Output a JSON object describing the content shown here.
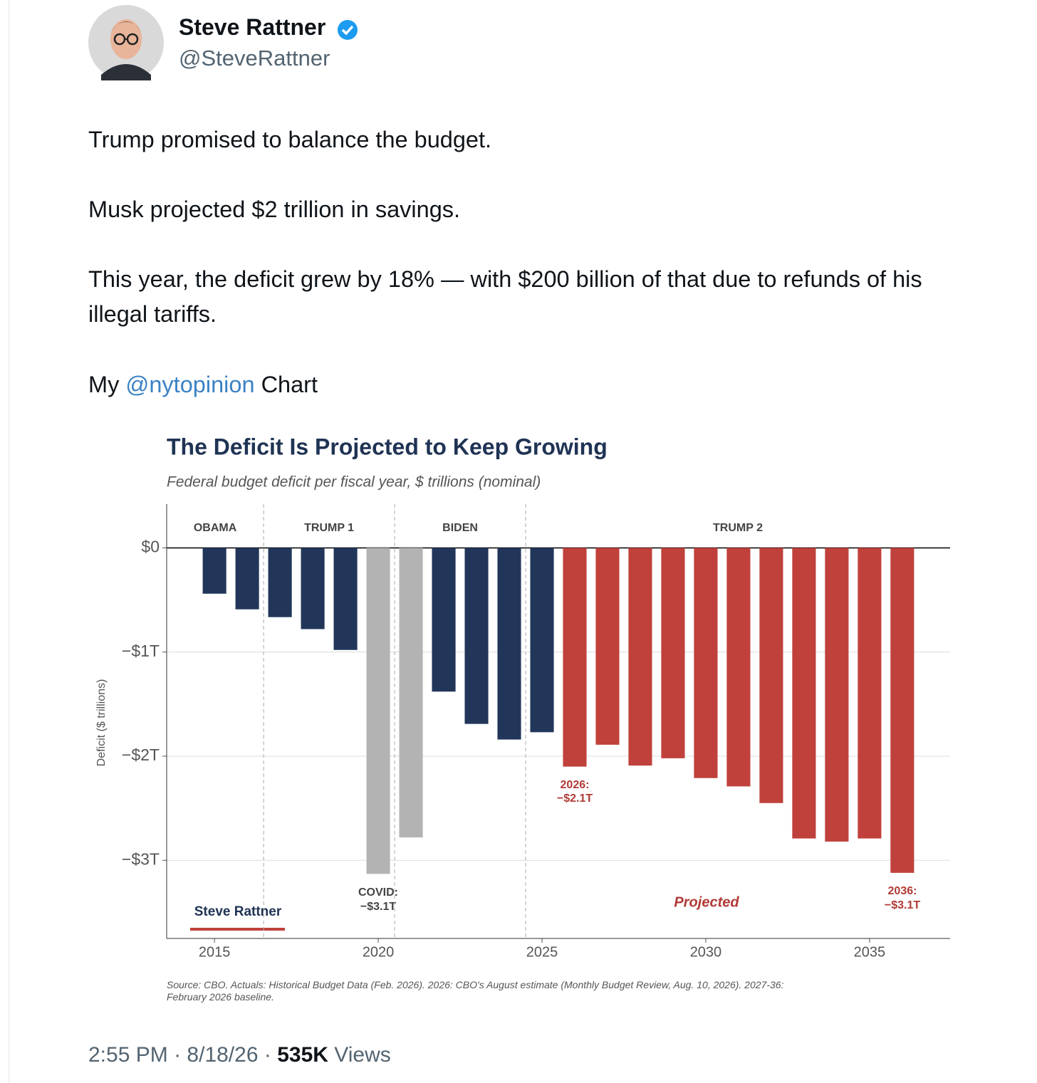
{
  "tweet": {
    "author_name": "Steve Rattner",
    "handle": "@SteveRattner",
    "paragraphs": [
      "Trump promised to balance the budget.",
      "Musk projected $2 trillion in savings.",
      "This year, the deficit grew by 18% — with $200 billion of that due to refunds of his illegal tariffs."
    ],
    "last_paragraph": {
      "before": "My",
      "mention": "@nytopinion",
      "after": "Chart"
    },
    "footer": {
      "time": "2:55 PM",
      "separator": "·",
      "date": "8/18/26",
      "views": "535K",
      "views_label": "Views"
    }
  },
  "chart_data": {
    "type": "bar",
    "title": "The Deficit Is Projected to Keep Growing",
    "subtitle": "Federal budget deficit per fiscal year, $ trillions (nominal)",
    "y_label": "Deficit ($ trillions)",
    "x": [
      2015,
      2016,
      2017,
      2018,
      2019,
      2020,
      2021,
      2022,
      2023,
      2024,
      2025,
      2026,
      2027,
      2028,
      2029,
      2030,
      2031,
      2032,
      2033,
      2034,
      2035,
      2036
    ],
    "values": [
      -0.44,
      -0.59,
      -0.665,
      -0.78,
      -0.98,
      -3.13,
      -2.78,
      -1.38,
      -1.69,
      -1.84,
      -1.77,
      -2.1,
      -1.89,
      -2.09,
      -2.02,
      -2.21,
      -2.29,
      -2.45,
      -2.79,
      -2.82,
      -2.79,
      -3.12
    ],
    "colors": [
      "#22365a",
      "#22365a",
      "#22365a",
      "#22365a",
      "#22365a",
      "#b3b3b3",
      "#b3b3b3",
      "#22365a",
      "#22365a",
      "#22365a",
      "#22365a",
      "#c0413b",
      "#c0413b",
      "#c0413b",
      "#c0413b",
      "#c0413b",
      "#c0413b",
      "#c0413b",
      "#c0413b",
      "#c0413b",
      "#c0413b",
      "#c0413b"
    ],
    "xlim": [
      2013.54,
      2037.46
    ],
    "ylim": [
      -3.75,
      0.42
    ],
    "xticks": [
      2015,
      2020,
      2025,
      2030,
      2035
    ],
    "yticks": [
      {
        "value": 0,
        "label": "$0"
      },
      {
        "value": -1,
        "label": "−$1T"
      },
      {
        "value": -2,
        "label": "−$2T"
      },
      {
        "value": -3,
        "label": "−$3T"
      }
    ],
    "grid": true,
    "dividers": [
      2016.5,
      2020.5,
      2024.5
    ],
    "eras": [
      "OBAMA",
      "TRUMP 1",
      "BIDEN",
      "TRUMP 2"
    ],
    "annotations": [
      {
        "lines": [
          "COVID:",
          "−$3.1T"
        ]
      },
      {
        "lines": [
          "2026:",
          "−$2.1T"
        ]
      },
      {
        "lines": [
          "2036:",
          "−$3.1T"
        ]
      },
      {
        "lines": [
          "Projected"
        ]
      }
    ],
    "signature": "Steve Rattner",
    "source": "Source: CBO. Actuals: Historical Budget Data (Feb. 2026). 2026: CBO's August estimate (Monthly Budget Review, Aug. 10, 2026). 2027-36: February 2026 baseline."
  }
}
